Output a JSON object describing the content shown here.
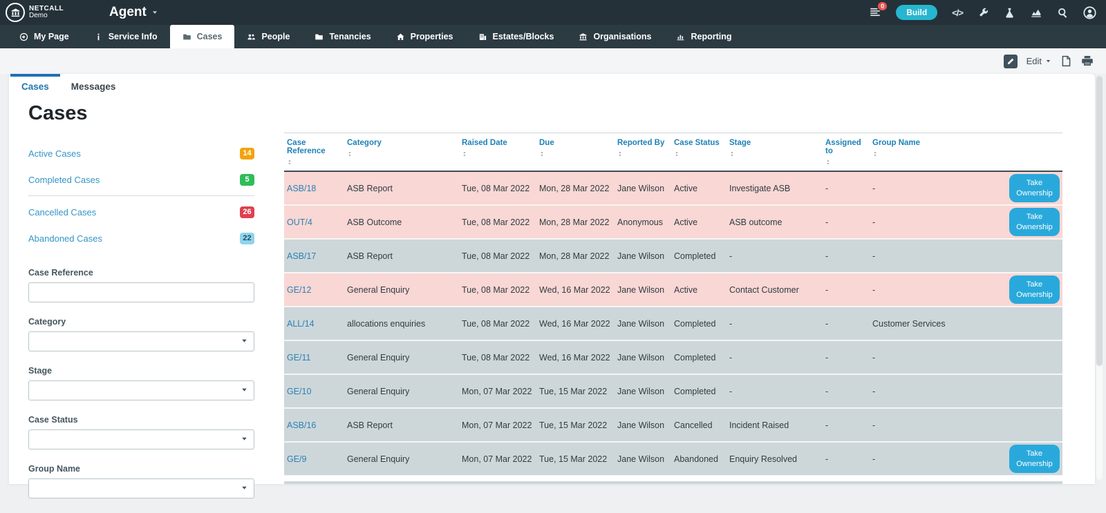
{
  "topbar": {
    "logo": {
      "line1": "NETCALL",
      "line2": "Demo"
    },
    "app_title": "Agent",
    "notification_count": "0",
    "build_label": "Build",
    "right_icons": [
      "list-icon",
      "code-icon",
      "wrench-icon",
      "flask-icon",
      "analytics-icon",
      "search-icon",
      "user-icon"
    ]
  },
  "nav": {
    "items": [
      {
        "label": "My Page",
        "icon": "arrow-circle",
        "active": false
      },
      {
        "label": "Service Info",
        "icon": "info",
        "active": false
      },
      {
        "label": "Cases",
        "icon": "folder",
        "active": true
      },
      {
        "label": "People",
        "icon": "people",
        "active": false
      },
      {
        "label": "Tenancies",
        "icon": "folder",
        "active": false
      },
      {
        "label": "Properties",
        "icon": "home",
        "active": false
      },
      {
        "label": "Estates/Blocks",
        "icon": "building",
        "active": false
      },
      {
        "label": "Organisations",
        "icon": "bank",
        "active": false
      },
      {
        "label": "Reporting",
        "icon": "chart-bars",
        "active": false
      }
    ]
  },
  "toolbar": {
    "edit_label": "Edit"
  },
  "tabs": [
    {
      "label": "Cases",
      "active": true
    },
    {
      "label": "Messages",
      "active": false
    }
  ],
  "page": {
    "title": "Cases"
  },
  "sidebar": {
    "links": [
      {
        "label": "Active Cases",
        "count": "14",
        "badge_bg": "#f2a30b",
        "badge_fg": "#ffffff"
      },
      {
        "label": "Completed Cases",
        "count": "5",
        "badge_bg": "#2ebd59",
        "badge_fg": "#ffffff"
      },
      {
        "label": "Cancelled Cases",
        "count": "26",
        "badge_bg": "#e04050",
        "badge_fg": "#ffffff"
      },
      {
        "label": "Abandoned Cases",
        "count": "22",
        "badge_bg": "#8ed4ec",
        "badge_fg": "#24515f"
      }
    ],
    "divider_after_index": 1,
    "filters": [
      {
        "label": "Case Reference",
        "type": "text",
        "value": ""
      },
      {
        "label": "Category",
        "type": "select",
        "value": ""
      },
      {
        "label": "Stage",
        "type": "select",
        "value": ""
      },
      {
        "label": "Case Status",
        "type": "select",
        "value": ""
      },
      {
        "label": "Group Name",
        "type": "select",
        "value": ""
      }
    ]
  },
  "table": {
    "columns": [
      "Case Reference",
      "Category",
      "Raised Date",
      "Due",
      "Reported By",
      "Case Status",
      "Stage",
      "Assigned to",
      "Group Name"
    ],
    "take_ownership_label": "Take Ownership",
    "rows": [
      {
        "ref": "ASB/18",
        "category": "ASB Report",
        "raised": "Tue, 08 Mar 2022",
        "due": "Mon, 28 Mar 2022",
        "reported_by": "Jane Wilson",
        "reported_muted": false,
        "status": "Active",
        "stage": "Investigate ASB",
        "assigned_to": "-",
        "group": "-",
        "take_ownership": true,
        "highlight": "pink"
      },
      {
        "ref": "OUT/4",
        "category": "ASB Outcome",
        "raised": "Tue, 08 Mar 2022",
        "due": "Mon, 28 Mar 2022",
        "reported_by": "Anonymous",
        "reported_muted": true,
        "status": "Active",
        "stage": "ASB outcome",
        "assigned_to": "-",
        "group": "-",
        "take_ownership": true,
        "highlight": "pink"
      },
      {
        "ref": "ASB/17",
        "category": "ASB Report",
        "raised": "Tue, 08 Mar 2022",
        "due": "Mon, 28 Mar 2022",
        "reported_by": "Jane Wilson",
        "reported_muted": false,
        "status": "Completed",
        "stage": "-",
        "assigned_to": "-",
        "group": "-",
        "take_ownership": false,
        "highlight": "gray"
      },
      {
        "ref": "GE/12",
        "category": "General Enquiry",
        "raised": "Tue, 08 Mar 2022",
        "due": "Wed, 16 Mar 2022",
        "reported_by": "Jane Wilson",
        "reported_muted": false,
        "status": "Active",
        "stage": "Contact Customer",
        "assigned_to": "-",
        "group": "-",
        "take_ownership": true,
        "highlight": "pink"
      },
      {
        "ref": "ALL/14",
        "category": "allocations enquiries",
        "raised": "Tue, 08 Mar 2022",
        "due": "Wed, 16 Mar 2022",
        "reported_by": "Jane Wilson",
        "reported_muted": false,
        "status": "Completed",
        "stage": "-",
        "assigned_to": "-",
        "group": "Customer Services",
        "take_ownership": false,
        "highlight": "gray"
      },
      {
        "ref": "GE/11",
        "category": "General Enquiry",
        "raised": "Tue, 08 Mar 2022",
        "due": "Wed, 16 Mar 2022",
        "reported_by": "Jane Wilson",
        "reported_muted": false,
        "status": "Completed",
        "stage": "-",
        "assigned_to": "-",
        "group": "-",
        "take_ownership": false,
        "highlight": "gray"
      },
      {
        "ref": "GE/10",
        "category": "General Enquiry",
        "raised": "Mon, 07 Mar 2022",
        "due": "Tue, 15 Mar 2022",
        "reported_by": "Jane Wilson",
        "reported_muted": false,
        "status": "Completed",
        "stage": "-",
        "assigned_to": "-",
        "group": "-",
        "take_ownership": false,
        "highlight": "gray"
      },
      {
        "ref": "ASB/16",
        "category": "ASB Report",
        "raised": "Mon, 07 Mar 2022",
        "due": "Tue, 15 Mar 2022",
        "reported_by": "Jane Wilson",
        "reported_muted": false,
        "status": "Cancelled",
        "stage": "Incident Raised",
        "assigned_to": "-",
        "group": "-",
        "take_ownership": false,
        "highlight": "gray"
      },
      {
        "ref": "GE/9",
        "category": "General Enquiry",
        "raised": "Mon, 07 Mar 2022",
        "due": "Tue, 15 Mar 2022",
        "reported_by": "Jane Wilson",
        "reported_muted": false,
        "status": "Abandoned",
        "stage": "Enquiry Resolved",
        "assigned_to": "-",
        "group": "-",
        "take_ownership": true,
        "highlight": "gray"
      }
    ]
  },
  "colors": {
    "topbar_bg": "#243139",
    "navbar_bg": "#2c3a42",
    "build_btn": "#27b6cf",
    "pink_row": "#f8d7d4",
    "gray_row": "#cdd7da",
    "take_ownership_btn": "#29a9db",
    "link_blue": "#3295c7",
    "header_blue": "#1e81b6",
    "tab_indicator": "#1c6fb8",
    "notification_badge": "#e8544f"
  }
}
